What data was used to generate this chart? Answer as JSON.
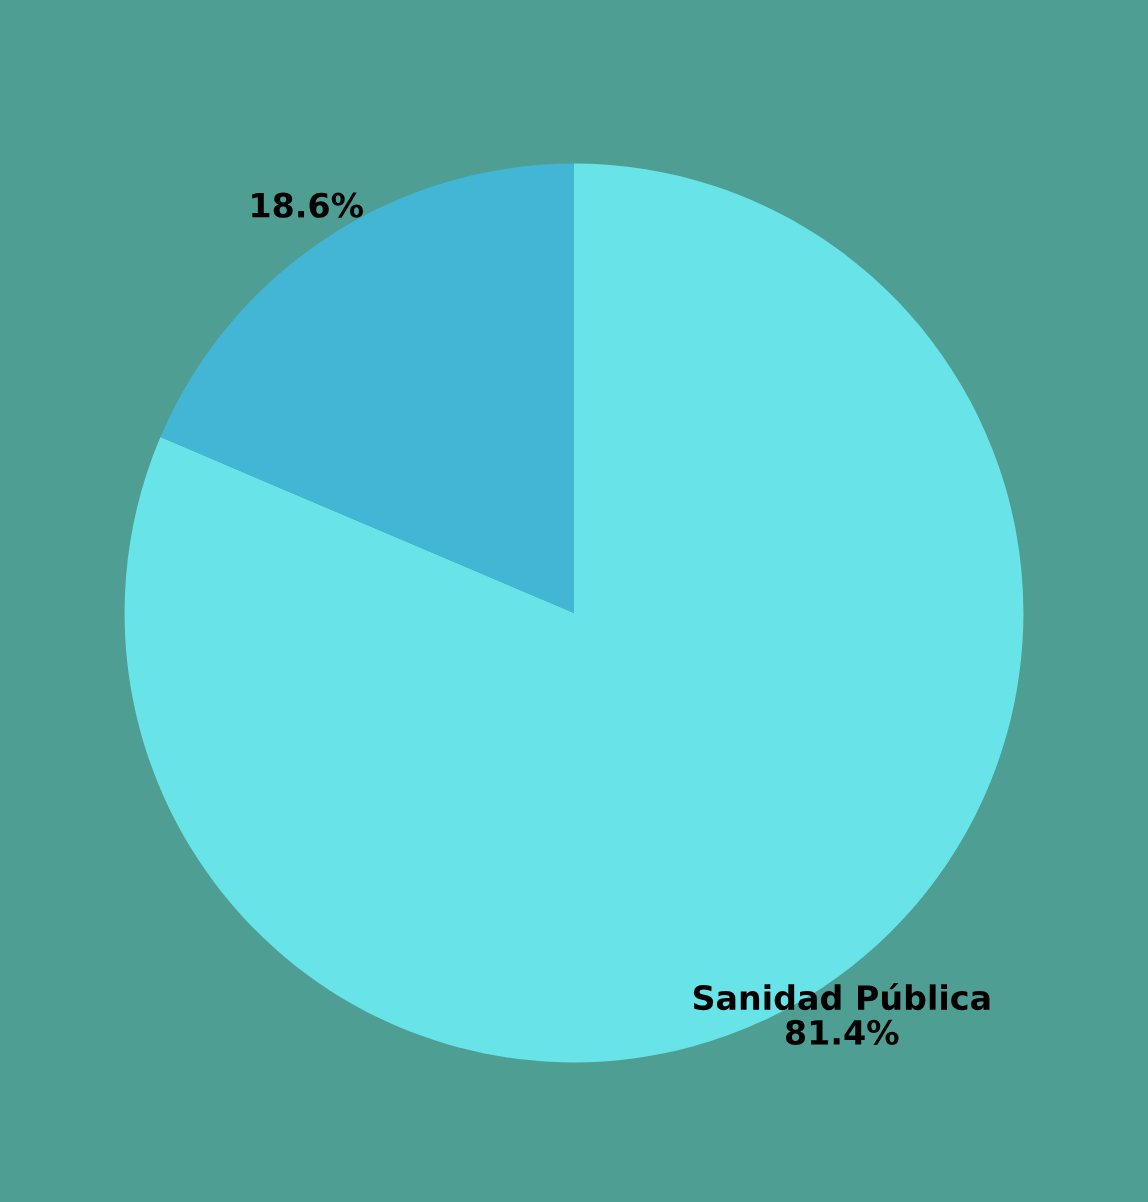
{
  "chart_data": {
    "type": "pie",
    "categories": [
      "Sanidad Pública",
      null
    ],
    "values": [
      81.4,
      18.6
    ],
    "colors": [
      "#68e4e8",
      "#42b6d4"
    ],
    "value_labels": [
      "81.4%",
      "18.6%"
    ],
    "legend": false
  }
}
